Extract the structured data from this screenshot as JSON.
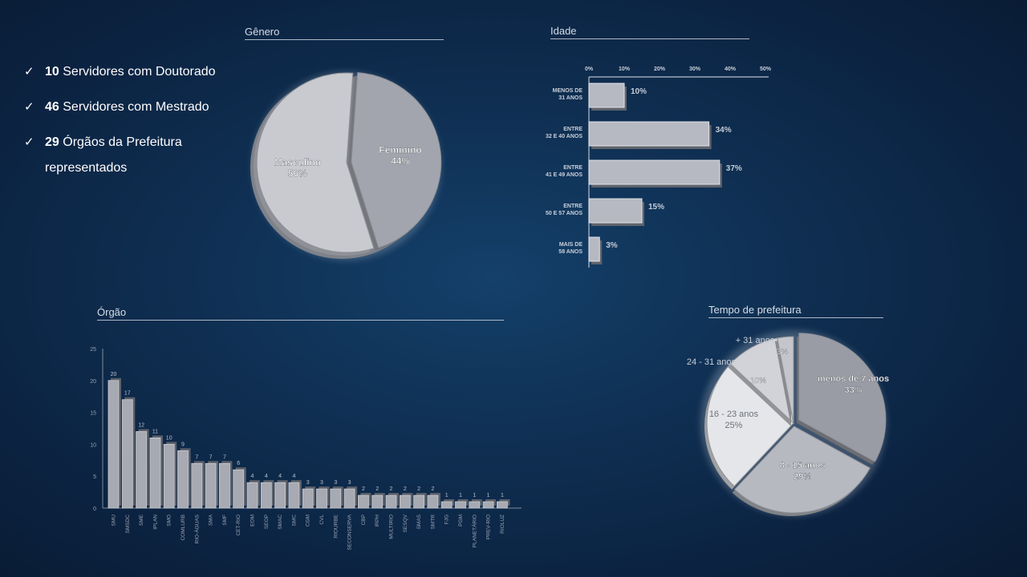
{
  "bullets": [
    {
      "number": "10",
      "text": " Servidores com Doutorado"
    },
    {
      "number": "46",
      "text": " Servidores com Mestrado"
    },
    {
      "number": "29",
      "text": " Órgãos da Prefeitura representados"
    }
  ],
  "check_icon": "checkmark-icon",
  "chart_data": [
    {
      "id": "genero",
      "type": "pie",
      "title": "Gênero",
      "slices": [
        {
          "label": "Feminino",
          "value": 44,
          "display": "44%"
        },
        {
          "label": "Masculino",
          "value": 56,
          "display": "56%"
        }
      ],
      "colors": [
        "#a2a5ad",
        "#c8cad0"
      ]
    },
    {
      "id": "idade",
      "type": "bar",
      "orientation": "horizontal",
      "title": "Idade",
      "x_ticks": [
        "0%",
        "10%",
        "20%",
        "30%",
        "40%",
        "50%"
      ],
      "xlim": [
        0,
        50
      ],
      "categories": [
        [
          "MENOS DE",
          "31 ANOS"
        ],
        [
          "ENTRE",
          "32 E 40 ANOS"
        ],
        [
          "ENTRE",
          "41 E 49 ANOS"
        ],
        [
          "ENTRE",
          "50 E 57 ANOS"
        ],
        [
          "MAIS DE",
          "58 ANOS"
        ]
      ],
      "values": [
        10,
        34,
        37,
        15,
        3
      ],
      "value_labels": [
        "10%",
        "34%",
        "37%",
        "15%",
        "3%"
      ]
    },
    {
      "id": "orgao",
      "type": "bar",
      "title": "Órgão",
      "ylim": [
        0,
        25
      ],
      "y_ticks": [
        "0",
        "5",
        "10",
        "15",
        "20",
        "25"
      ],
      "categories": [
        "SMU",
        "SMSDC",
        "SME",
        "IPLAN",
        "SMO",
        "COMLURB",
        "RIO-ÁGUAS",
        "SMA",
        "SMF",
        "CET-RIO",
        "EOM",
        "SEOP",
        "SMAC",
        "SMC",
        "CGM",
        "CVL",
        "RIOURBE",
        "SECONSERVA",
        "CBP",
        "IRPH",
        "MULTIRIO",
        "SESQV",
        "SMAS",
        "SMTR",
        "FJG",
        "PGM",
        "PLANETÁRIO",
        "PREV-RIO",
        "RIOLUZ"
      ],
      "values": [
        20,
        17,
        12,
        11,
        10,
        9,
        7,
        7,
        7,
        6,
        4,
        4,
        4,
        4,
        3,
        3,
        3,
        3,
        2,
        2,
        2,
        2,
        2,
        2,
        1,
        1,
        1,
        1,
        1
      ]
    },
    {
      "id": "tempo",
      "type": "pie",
      "title": "Tempo de prefeitura",
      "slices": [
        {
          "label": "menos de 7 anos",
          "value": 33,
          "display": "33%"
        },
        {
          "label": "8 - 15 anos",
          "value": 29,
          "display": "29%"
        },
        {
          "label": "16 - 23 anos",
          "value": 25,
          "display": "25%"
        },
        {
          "label": "24 - 31 anos",
          "value": 10,
          "display": "10%"
        },
        {
          "label": "+ 31 anos",
          "value": 3,
          "display": "3%"
        }
      ],
      "colors": [
        "#999ca4",
        "#b6b9bf",
        "#e4e6e9",
        "#d1d3d8",
        "#c4c6cb"
      ]
    }
  ]
}
